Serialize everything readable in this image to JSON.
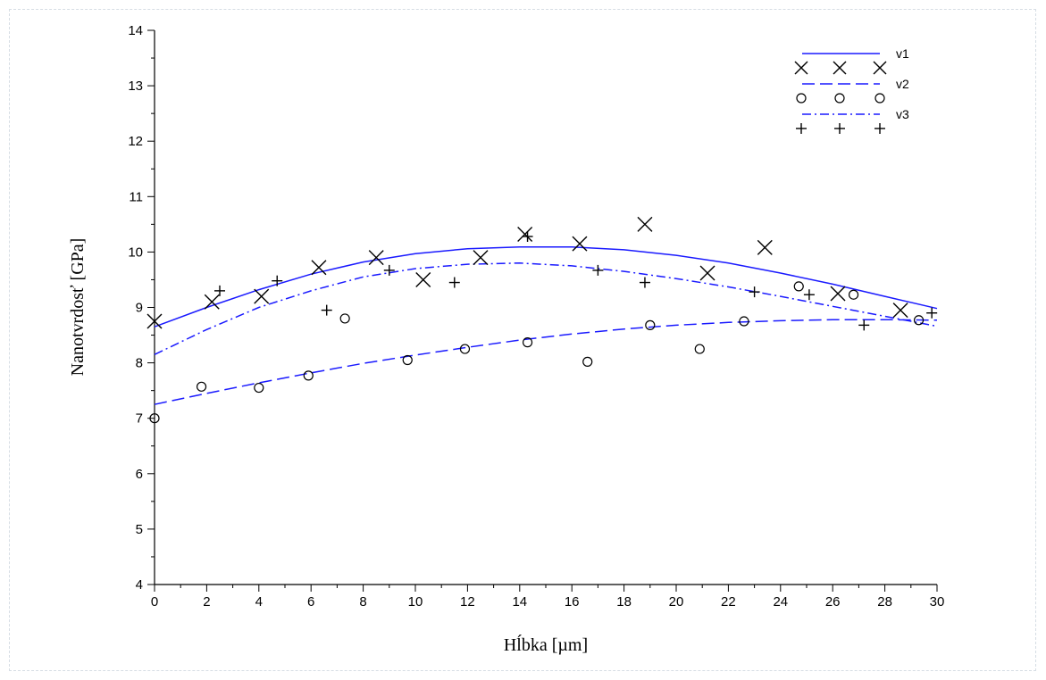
{
  "chart_data": {
    "type": "scatter",
    "title": "",
    "xlabel": "Hĺbka [µm]",
    "ylabel": "Nanotvrdosť [GPa]",
    "xlim": [
      0,
      30
    ],
    "ylim": [
      4,
      14
    ],
    "x_ticks": [
      0,
      2,
      4,
      6,
      8,
      10,
      12,
      14,
      16,
      18,
      20,
      22,
      24,
      26,
      28,
      30
    ],
    "y_ticks": [
      4,
      5,
      6,
      7,
      8,
      9,
      10,
      11,
      12,
      13,
      14
    ],
    "grid": false,
    "legend_position": "top-right",
    "colors": {
      "fit": "#1a1aff",
      "marker": "#000000"
    },
    "series": [
      {
        "name": "v1",
        "marker": "x",
        "line_style": "solid",
        "points": [
          [
            0.0,
            8.75
          ],
          [
            2.2,
            9.1
          ],
          [
            4.1,
            9.2
          ],
          [
            6.3,
            9.72
          ],
          [
            8.5,
            9.9
          ],
          [
            10.3,
            9.5
          ],
          [
            12.5,
            9.9
          ],
          [
            14.2,
            10.32
          ],
          [
            16.3,
            10.15
          ],
          [
            18.8,
            10.5
          ],
          [
            21.2,
            9.62
          ],
          [
            23.4,
            10.08
          ],
          [
            26.2,
            9.25
          ],
          [
            28.6,
            8.95
          ]
        ],
        "fit": [
          [
            0,
            8.65
          ],
          [
            2,
            9.0
          ],
          [
            4,
            9.32
          ],
          [
            6,
            9.6
          ],
          [
            8,
            9.82
          ],
          [
            10,
            9.97
          ],
          [
            12,
            10.06
          ],
          [
            14,
            10.09
          ],
          [
            16,
            10.09
          ],
          [
            18,
            10.04
          ],
          [
            20,
            9.94
          ],
          [
            22,
            9.8
          ],
          [
            24,
            9.62
          ],
          [
            26,
            9.42
          ],
          [
            28,
            9.2
          ],
          [
            30,
            8.98
          ]
        ]
      },
      {
        "name": "v2",
        "marker": "o",
        "line_style": "dashed",
        "points": [
          [
            0.0,
            7.0
          ],
          [
            1.8,
            7.57
          ],
          [
            4.0,
            7.55
          ],
          [
            5.9,
            7.77
          ],
          [
            7.3,
            8.8
          ],
          [
            9.7,
            8.05
          ],
          [
            11.9,
            8.25
          ],
          [
            14.3,
            8.37
          ],
          [
            16.6,
            8.02
          ],
          [
            19.0,
            8.68
          ],
          [
            20.9,
            8.25
          ],
          [
            22.6,
            8.75
          ],
          [
            24.7,
            9.38
          ],
          [
            26.8,
            9.23
          ],
          [
            29.3,
            8.77
          ]
        ],
        "fit": [
          [
            0,
            7.25
          ],
          [
            2,
            7.45
          ],
          [
            4,
            7.64
          ],
          [
            6,
            7.82
          ],
          [
            8,
            7.99
          ],
          [
            10,
            8.14
          ],
          [
            12,
            8.28
          ],
          [
            14,
            8.41
          ],
          [
            16,
            8.52
          ],
          [
            18,
            8.61
          ],
          [
            20,
            8.68
          ],
          [
            22,
            8.73
          ],
          [
            24,
            8.76
          ],
          [
            26,
            8.78
          ],
          [
            28,
            8.78
          ],
          [
            30,
            8.77
          ]
        ]
      },
      {
        "name": "v3",
        "marker": "+",
        "line_style": "dashdot",
        "points": [
          [
            2.5,
            9.3
          ],
          [
            4.7,
            9.48
          ],
          [
            6.6,
            8.95
          ],
          [
            9.0,
            9.67
          ],
          [
            11.5,
            9.45
          ],
          [
            14.3,
            10.28
          ],
          [
            17.0,
            9.67
          ],
          [
            18.8,
            9.45
          ],
          [
            23.0,
            9.28
          ],
          [
            25.1,
            9.23
          ],
          [
            27.2,
            8.68
          ],
          [
            29.8,
            8.9
          ]
        ],
        "fit": [
          [
            0,
            8.15
          ],
          [
            2,
            8.6
          ],
          [
            4,
            9.0
          ],
          [
            6,
            9.3
          ],
          [
            8,
            9.55
          ],
          [
            10,
            9.7
          ],
          [
            12,
            9.78
          ],
          [
            14,
            9.8
          ],
          [
            16,
            9.75
          ],
          [
            18,
            9.65
          ],
          [
            20,
            9.52
          ],
          [
            22,
            9.37
          ],
          [
            24,
            9.2
          ],
          [
            26,
            9.02
          ],
          [
            28,
            8.84
          ],
          [
            30,
            8.66
          ]
        ]
      }
    ]
  }
}
